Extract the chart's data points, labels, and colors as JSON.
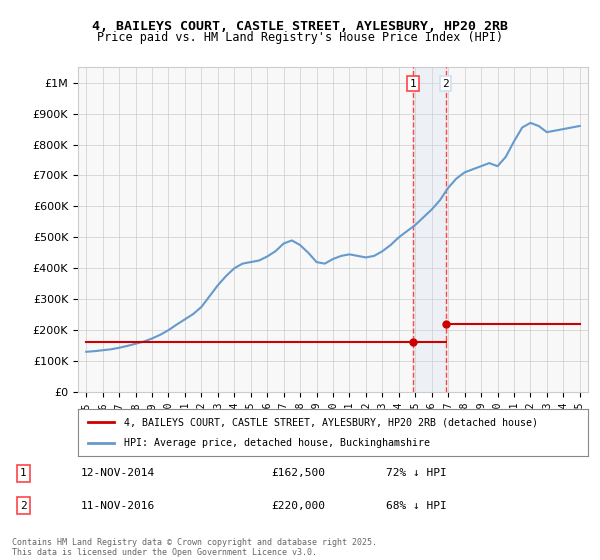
{
  "title_line1": "4, BAILEYS COURT, CASTLE STREET, AYLESBURY, HP20 2RB",
  "title_line2": "Price paid vs. HM Land Registry's House Price Index (HPI)",
  "ylabel_ticks": [
    "£0",
    "£100K",
    "£200K",
    "£300K",
    "£400K",
    "£500K",
    "£600K",
    "£700K",
    "£800K",
    "£900K",
    "£1M"
  ],
  "ytick_values": [
    0,
    100000,
    200000,
    300000,
    400000,
    500000,
    600000,
    700000,
    800000,
    900000,
    1000000
  ],
  "ylim": [
    0,
    1050000
  ],
  "hpi_years": [
    1995,
    1995.5,
    1996,
    1996.5,
    1997,
    1997.5,
    1998,
    1998.5,
    1999,
    1999.5,
    2000,
    2000.5,
    2001,
    2001.5,
    2002,
    2002.5,
    2003,
    2003.5,
    2004,
    2004.5,
    2005,
    2005.5,
    2006,
    2006.5,
    2007,
    2007.5,
    2008,
    2008.5,
    2009,
    2009.5,
    2010,
    2010.5,
    2011,
    2011.5,
    2012,
    2012.5,
    2013,
    2013.5,
    2014,
    2014.5,
    2015,
    2015.5,
    2016,
    2016.5,
    2017,
    2017.5,
    2018,
    2018.5,
    2019,
    2019.5,
    2020,
    2020.5,
    2021,
    2021.5,
    2022,
    2022.5,
    2023,
    2023.5,
    2024,
    2024.5,
    2025
  ],
  "hpi_values": [
    130000,
    132000,
    135000,
    138000,
    143000,
    149000,
    156000,
    163000,
    173000,
    185000,
    200000,
    218000,
    235000,
    252000,
    275000,
    310000,
    345000,
    375000,
    400000,
    415000,
    420000,
    425000,
    438000,
    455000,
    480000,
    490000,
    475000,
    450000,
    420000,
    415000,
    430000,
    440000,
    445000,
    440000,
    435000,
    440000,
    455000,
    475000,
    500000,
    520000,
    540000,
    565000,
    590000,
    620000,
    660000,
    690000,
    710000,
    720000,
    730000,
    740000,
    730000,
    760000,
    810000,
    855000,
    870000,
    860000,
    840000,
    845000,
    850000,
    855000,
    860000
  ],
  "sale1_x": 2014.86,
  "sale1_y": 162500,
  "sale2_x": 2016.86,
  "sale2_y": 220000,
  "hpi_color": "#6699cc",
  "price_color": "#cc0000",
  "vline_color": "#ff4444",
  "shade_color": "#d0e0f0",
  "legend_label1": "4, BAILEYS COURT, CASTLE STREET, AYLESBURY, HP20 2RB (detached house)",
  "legend_label2": "HPI: Average price, detached house, Buckinghamshire",
  "sale1_label": "1",
  "sale2_label": "2",
  "sale1_date": "12-NOV-2014",
  "sale1_price": "£162,500",
  "sale1_hpi": "72% ↓ HPI",
  "sale2_date": "11-NOV-2016",
  "sale2_price": "£220,000",
  "sale2_hpi": "68% ↓ HPI",
  "copyright_text": "Contains HM Land Registry data © Crown copyright and database right 2025.\nThis data is licensed under the Open Government Licence v3.0.",
  "background_color": "#ffffff",
  "plot_bg_color": "#f8f8f8",
  "xtick_years": [
    1995,
    1996,
    1997,
    1998,
    1999,
    2000,
    2001,
    2002,
    2003,
    2004,
    2005,
    2006,
    2007,
    2008,
    2009,
    2010,
    2011,
    2012,
    2013,
    2014,
    2015,
    2016,
    2017,
    2018,
    2019,
    2020,
    2021,
    2022,
    2023,
    2024,
    2025
  ]
}
